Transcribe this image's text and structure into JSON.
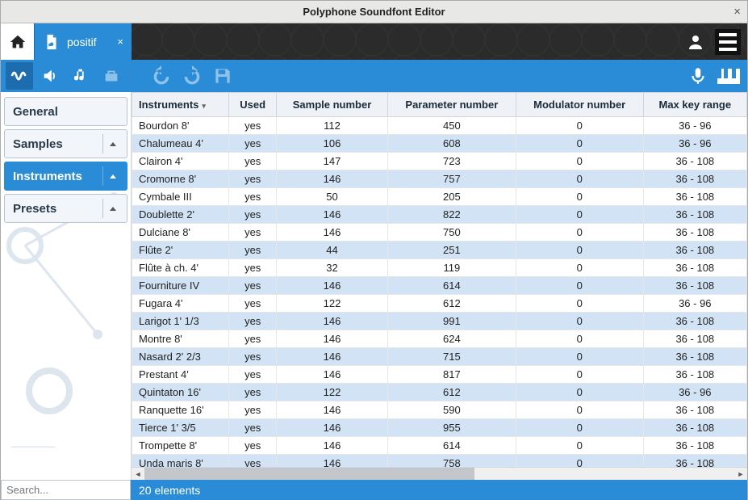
{
  "window": {
    "title": "Polyphone Soundfont Editor"
  },
  "filetab": {
    "name": "positif"
  },
  "sidebar": {
    "items": [
      {
        "label": "General",
        "active": false,
        "caret": false
      },
      {
        "label": "Samples",
        "active": false,
        "caret": true
      },
      {
        "label": "Instruments",
        "active": true,
        "caret": true
      },
      {
        "label": "Presets",
        "active": false,
        "caret": true
      }
    ]
  },
  "table": {
    "columns": [
      "Instruments",
      "Used",
      "Sample number",
      "Parameter number",
      "Modulator number",
      "Max key range"
    ],
    "rows": [
      [
        "Bourdon 8'",
        "yes",
        "112",
        "450",
        "0",
        "36 - 96"
      ],
      [
        "Chalumeau 4'",
        "yes",
        "106",
        "608",
        "0",
        "36 - 96"
      ],
      [
        "Clairon 4'",
        "yes",
        "147",
        "723",
        "0",
        "36 - 108"
      ],
      [
        "Cromorne 8'",
        "yes",
        "146",
        "757",
        "0",
        "36 - 108"
      ],
      [
        "Cymbale III",
        "yes",
        "50",
        "205",
        "0",
        "36 - 108"
      ],
      [
        "Doublette 2'",
        "yes",
        "146",
        "822",
        "0",
        "36 - 108"
      ],
      [
        "Dulciane 8'",
        "yes",
        "146",
        "750",
        "0",
        "36 - 108"
      ],
      [
        "Flûte 2'",
        "yes",
        "44",
        "251",
        "0",
        "36 - 108"
      ],
      [
        "Flûte à ch. 4'",
        "yes",
        "32",
        "119",
        "0",
        "36 - 108"
      ],
      [
        "Fourniture IV",
        "yes",
        "146",
        "614",
        "0",
        "36 - 108"
      ],
      [
        "Fugara 4'",
        "yes",
        "122",
        "612",
        "0",
        "36 - 96"
      ],
      [
        "Larigot 1' 1/3",
        "yes",
        "146",
        "991",
        "0",
        "36 - 108"
      ],
      [
        "Montre 8'",
        "yes",
        "146",
        "624",
        "0",
        "36 - 108"
      ],
      [
        "Nasard 2' 2/3",
        "yes",
        "146",
        "715",
        "0",
        "36 - 108"
      ],
      [
        "Prestant 4'",
        "yes",
        "146",
        "817",
        "0",
        "36 - 108"
      ],
      [
        "Quintaton 16'",
        "yes",
        "122",
        "612",
        "0",
        "36 - 96"
      ],
      [
        "Ranquette 16'",
        "yes",
        "146",
        "590",
        "0",
        "36 - 108"
      ],
      [
        "Tierce 1' 3/5",
        "yes",
        "146",
        "955",
        "0",
        "36 - 108"
      ],
      [
        "Trompette 8'",
        "yes",
        "146",
        "614",
        "0",
        "36 - 108"
      ],
      [
        "Unda maris 8'",
        "yes",
        "146",
        "758",
        "0",
        "36 - 108"
      ]
    ]
  },
  "search": {
    "placeholder": "Search..."
  },
  "status": {
    "text": "20 elements"
  }
}
